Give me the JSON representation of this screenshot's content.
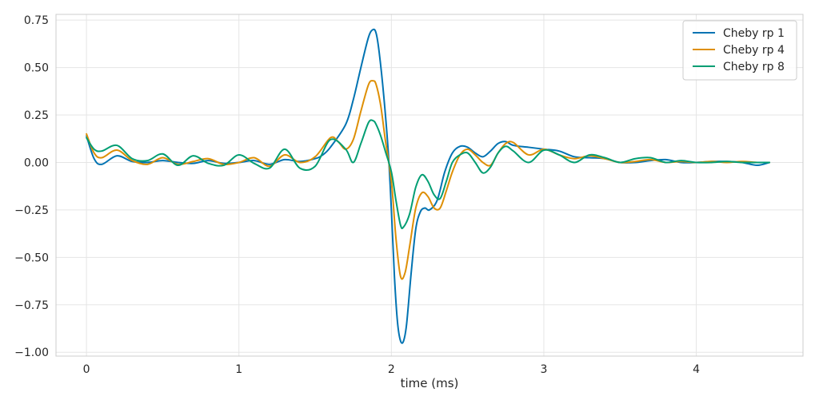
{
  "chart_data": {
    "type": "line",
    "title": "",
    "xlabel": "time (ms)",
    "ylabel": "",
    "xlim": [
      -0.2,
      4.7
    ],
    "ylim": [
      -1.02,
      0.78
    ],
    "xticks": [
      0,
      1,
      2,
      3,
      4
    ],
    "xtick_labels": [
      "0",
      "1",
      "2",
      "3",
      "4"
    ],
    "yticks": [
      0.75,
      0.5,
      0.25,
      0.0,
      -0.25,
      -0.5,
      -0.75,
      -1.0
    ],
    "ytick_labels": [
      "0.75",
      "0.50",
      "0.25",
      "0.00",
      "−0.25",
      "−0.50",
      "−0.75",
      "−1.00"
    ],
    "grid": true,
    "legend_position": "top-right",
    "series": [
      {
        "name": "Cheby rp 1",
        "color": "#0173b2",
        "x": [
          0,
          0.05,
          0.1,
          0.2,
          0.3,
          0.4,
          0.5,
          0.6,
          0.7,
          0.8,
          0.9,
          1.0,
          1.1,
          1.2,
          1.3,
          1.4,
          1.5,
          1.55,
          1.6,
          1.7,
          1.75,
          1.8,
          1.85,
          1.88,
          1.9,
          1.92,
          1.95,
          1.98,
          2.0,
          2.02,
          2.04,
          2.06,
          2.08,
          2.1,
          2.13,
          2.16,
          2.19,
          2.22,
          2.25,
          2.3,
          2.35,
          2.4,
          2.45,
          2.5,
          2.55,
          2.6,
          2.65,
          2.7,
          2.75,
          2.8,
          2.9,
          3.0,
          3.1,
          3.2,
          3.3,
          3.4,
          3.5,
          3.6,
          3.7,
          3.8,
          3.9,
          4.0,
          4.1,
          4.2,
          4.3,
          4.4,
          4.48
        ],
        "y": [
          0.14,
          0.02,
          -0.01,
          0.035,
          0.005,
          0.0,
          0.01,
          0.0,
          -0.005,
          0.01,
          -0.005,
          0.0,
          0.01,
          -0.01,
          0.015,
          0.005,
          0.02,
          0.04,
          0.08,
          0.2,
          0.33,
          0.5,
          0.66,
          0.7,
          0.68,
          0.58,
          0.35,
          0.05,
          -0.25,
          -0.6,
          -0.84,
          -0.94,
          -0.94,
          -0.85,
          -0.58,
          -0.35,
          -0.26,
          -0.24,
          -0.25,
          -0.2,
          -0.05,
          0.05,
          0.085,
          0.08,
          0.05,
          0.03,
          0.06,
          0.1,
          0.11,
          0.09,
          0.08,
          0.07,
          0.06,
          0.03,
          0.025,
          0.02,
          0.0,
          0.0,
          0.01,
          0.015,
          0.0,
          0.0,
          0.005,
          0.005,
          0.0,
          -0.015,
          0.0
        ]
      },
      {
        "name": "Cheby rp 4",
        "color": "#de8f05",
        "x": [
          0,
          0.05,
          0.1,
          0.2,
          0.3,
          0.4,
          0.5,
          0.6,
          0.7,
          0.8,
          0.9,
          1.0,
          1.1,
          1.2,
          1.3,
          1.4,
          1.5,
          1.6,
          1.65,
          1.7,
          1.75,
          1.8,
          1.85,
          1.88,
          1.9,
          1.93,
          1.96,
          2.0,
          2.03,
          2.06,
          2.09,
          2.12,
          2.16,
          2.2,
          2.24,
          2.28,
          2.32,
          2.36,
          2.4,
          2.45,
          2.5,
          2.55,
          2.6,
          2.65,
          2.7,
          2.75,
          2.8,
          2.9,
          3.0,
          3.1,
          3.2,
          3.3,
          3.4,
          3.5,
          3.6,
          3.7,
          3.8,
          3.9,
          4.0,
          4.1,
          4.2,
          4.3,
          4.4,
          4.48
        ],
        "y": [
          0.15,
          0.05,
          0.025,
          0.065,
          0.01,
          -0.01,
          0.025,
          -0.01,
          0.005,
          0.02,
          -0.01,
          0.0,
          0.025,
          -0.02,
          0.04,
          0.0,
          0.03,
          0.13,
          0.11,
          0.07,
          0.12,
          0.27,
          0.41,
          0.43,
          0.41,
          0.3,
          0.12,
          -0.1,
          -0.4,
          -0.6,
          -0.58,
          -0.44,
          -0.24,
          -0.16,
          -0.18,
          -0.24,
          -0.24,
          -0.15,
          -0.05,
          0.04,
          0.07,
          0.04,
          0.0,
          -0.015,
          0.05,
          0.1,
          0.105,
          0.04,
          0.07,
          0.04,
          0.02,
          0.035,
          0.02,
          0.0,
          0.005,
          0.015,
          0.0,
          0.005,
          0.0,
          0.005,
          0.0,
          0.005,
          0.0,
          0.0
        ]
      },
      {
        "name": "Cheby rp 8",
        "color": "#029e73",
        "x": [
          0,
          0.05,
          0.1,
          0.2,
          0.3,
          0.4,
          0.5,
          0.6,
          0.7,
          0.8,
          0.9,
          1.0,
          1.1,
          1.2,
          1.3,
          1.4,
          1.5,
          1.6,
          1.7,
          1.75,
          1.8,
          1.85,
          1.88,
          1.9,
          1.93,
          1.96,
          2.0,
          2.03,
          2.06,
          2.08,
          2.12,
          2.16,
          2.2,
          2.24,
          2.28,
          2.32,
          2.36,
          2.4,
          2.45,
          2.5,
          2.55,
          2.6,
          2.65,
          2.7,
          2.75,
          2.8,
          2.9,
          3.0,
          3.1,
          3.2,
          3.3,
          3.4,
          3.5,
          3.6,
          3.7,
          3.8,
          3.9,
          4.0,
          4.1,
          4.2,
          4.3,
          4.4,
          4.48
        ],
        "y": [
          0.13,
          0.07,
          0.06,
          0.09,
          0.02,
          0.01,
          0.045,
          -0.015,
          0.035,
          -0.005,
          -0.015,
          0.04,
          -0.005,
          -0.03,
          0.07,
          -0.03,
          -0.02,
          0.12,
          0.07,
          0.0,
          0.1,
          0.21,
          0.22,
          0.2,
          0.14,
          0.06,
          -0.05,
          -0.2,
          -0.33,
          -0.34,
          -0.27,
          -0.13,
          -0.065,
          -0.1,
          -0.17,
          -0.19,
          -0.1,
          0.0,
          0.04,
          0.05,
          0.0,
          -0.055,
          -0.025,
          0.05,
          0.085,
          0.06,
          0.0,
          0.065,
          0.04,
          0.0,
          0.04,
          0.025,
          0.0,
          0.02,
          0.025,
          0.0,
          0.01,
          0.0,
          0.0,
          0.005,
          0.0,
          0.0,
          0.0
        ]
      }
    ]
  }
}
